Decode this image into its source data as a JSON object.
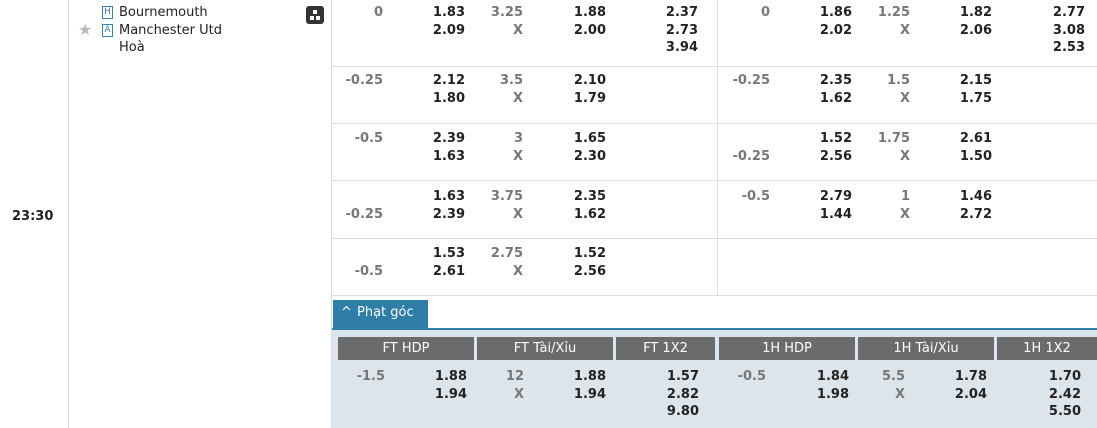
{
  "match": {
    "time": "23:30",
    "home": {
      "badge": "H",
      "name": "Bournemouth"
    },
    "away": {
      "badge": "A",
      "name": "Manchester Utd"
    },
    "draw": "Hoà"
  },
  "rows": [
    {
      "ft": {
        "hdp": [
          "0",
          null
        ],
        "hdp_odds": [
          "1.83",
          "2.09"
        ],
        "ou": "3.25",
        "ou_mark": "X",
        "ou_odds": [
          "1.88",
          "2.00"
        ],
        "x12": [
          "2.37",
          "2.73",
          "3.94"
        ]
      },
      "h1": {
        "hdp": [
          "0",
          null
        ],
        "hdp_odds": [
          "1.86",
          "2.02"
        ],
        "ou": "1.25",
        "ou_mark": "X",
        "ou_odds": [
          "1.82",
          "2.06"
        ],
        "x12": [
          "2.77",
          "3.08",
          "2.53"
        ]
      }
    },
    {
      "ft": {
        "hdp": [
          "-0.25",
          null
        ],
        "hdp_odds": [
          "2.12",
          "1.80"
        ],
        "ou": "3.5",
        "ou_mark": "X",
        "ou_odds": [
          "2.10",
          "1.79"
        ]
      },
      "h1": {
        "hdp": [
          "-0.25",
          null
        ],
        "hdp_odds": [
          "2.35",
          "1.62"
        ],
        "ou": "1.5",
        "ou_mark": "X",
        "ou_odds": [
          "2.15",
          "1.75"
        ]
      }
    },
    {
      "ft": {
        "hdp": [
          "-0.5",
          null
        ],
        "hdp_odds": [
          "2.39",
          "1.63"
        ],
        "ou": "3",
        "ou_mark": "X",
        "ou_odds": [
          "1.65",
          "2.30"
        ]
      },
      "h1": {
        "hdp": [
          null,
          "-0.25"
        ],
        "hdp_odds": [
          "1.52",
          "2.56"
        ],
        "ou": "1.75",
        "ou_mark": "X",
        "ou_odds": [
          "2.61",
          "1.50"
        ]
      }
    },
    {
      "ft": {
        "hdp": [
          null,
          "-0.25"
        ],
        "hdp_odds": [
          "1.63",
          "2.39"
        ],
        "ou": "3.75",
        "ou_mark": "X",
        "ou_odds": [
          "2.35",
          "1.62"
        ]
      },
      "h1": {
        "hdp": [
          "-0.5",
          null
        ],
        "hdp_odds": [
          "2.79",
          "1.44"
        ],
        "ou": "1",
        "ou_mark": "X",
        "ou_odds": [
          "1.46",
          "2.72"
        ]
      }
    },
    {
      "ft": {
        "hdp": [
          null,
          "-0.5"
        ],
        "hdp_odds": [
          "1.53",
          "2.61"
        ],
        "ou": "2.75",
        "ou_mark": "X",
        "ou_odds": [
          "1.52",
          "2.56"
        ]
      }
    }
  ],
  "corners": {
    "tab": "Phạt góc",
    "headers": [
      "FT HDP",
      "FT Tài/Xỉu",
      "FT 1X2",
      "1H HDP",
      "1H Tài/Xỉu",
      "1H 1X2"
    ],
    "ft": {
      "hdp": [
        "-1.5",
        null
      ],
      "hdp_odds": [
        "1.88",
        "1.94"
      ],
      "ou": "12",
      "ou_mark": "X",
      "ou_odds": [
        "1.88",
        "1.94"
      ],
      "x12": [
        "1.57",
        "2.82",
        "9.80"
      ]
    },
    "h1": {
      "hdp": [
        "-0.5",
        null
      ],
      "hdp_odds": [
        "1.84",
        "1.98"
      ],
      "ou": "5.5",
      "ou_mark": "X",
      "ou_odds": [
        "1.78",
        "2.04"
      ],
      "x12": [
        "1.70",
        "2.42",
        "5.50"
      ]
    }
  }
}
